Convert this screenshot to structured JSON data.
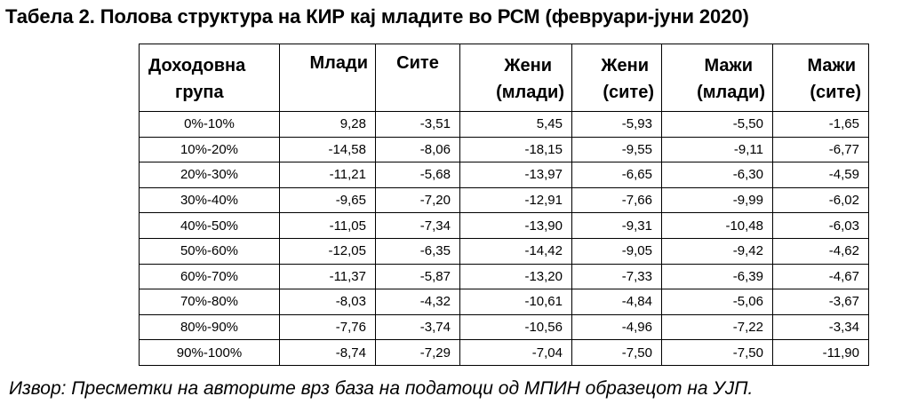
{
  "title": "Табела 2. Полова структура на КИР кај младите во РСМ (февруари-јуни 2020)",
  "table": {
    "headers": [
      {
        "line1": "Доходовна",
        "line2": "група"
      },
      {
        "line1": "Млади",
        "line2": ""
      },
      {
        "line1": "Сите",
        "line2": ""
      },
      {
        "line1": "Жени",
        "line2": "(млади)"
      },
      {
        "line1": "Жени",
        "line2": "(сите)"
      },
      {
        "line1": "Мажи",
        "line2": "(млади)"
      },
      {
        "line1": "Мажи",
        "line2": "(сите)"
      }
    ],
    "rows": [
      [
        "0%-10%",
        "9,28",
        "-3,51",
        "5,45",
        "-5,93",
        "-5,50",
        "-1,65"
      ],
      [
        "10%-20%",
        "-14,58",
        "-8,06",
        "-18,15",
        "-9,55",
        "-9,11",
        "-6,77"
      ],
      [
        "20%-30%",
        "-11,21",
        "-5,68",
        "-13,97",
        "-6,65",
        "-6,30",
        "-4,59"
      ],
      [
        "30%-40%",
        "-9,65",
        "-7,20",
        "-12,91",
        "-7,66",
        "-9,99",
        "-6,02"
      ],
      [
        "40%-50%",
        "-11,05",
        "-7,34",
        "-13,90",
        "-9,31",
        "-10,48",
        "-6,03"
      ],
      [
        "50%-60%",
        "-12,05",
        "-6,35",
        "-14,42",
        "-9,05",
        "-9,42",
        "-4,62"
      ],
      [
        "60%-70%",
        "-11,37",
        "-5,87",
        "-13,20",
        "-7,33",
        "-6,39",
        "-4,67"
      ],
      [
        "70%-80%",
        "-8,03",
        "-4,32",
        "-10,61",
        "-4,84",
        "-5,06",
        "-3,67"
      ],
      [
        "80%-90%",
        "-7,76",
        "-3,74",
        "-10,56",
        "-4,96",
        "-7,22",
        "-3,34"
      ],
      [
        "90%-100%",
        "-8,74",
        "-7,29",
        "-7,04",
        "-7,50",
        "-7,50",
        "-11,90"
      ]
    ]
  },
  "source": "Извор: Пресметки на авторите врз база на податоци од МПИН образецот на УЈП."
}
